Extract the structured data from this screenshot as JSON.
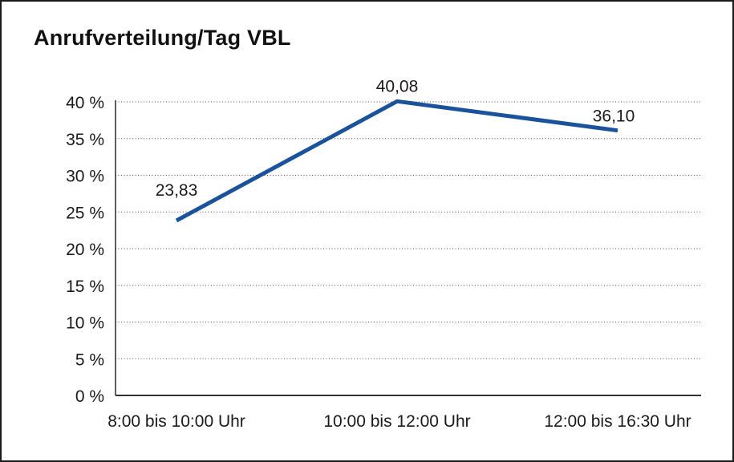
{
  "chart": {
    "title": "Anrufverteilung/Tag VBL"
  },
  "chart_data": {
    "type": "line",
    "title": "Anrufverteilung/Tag VBL",
    "categories": [
      "8:00 bis 10:00 Uhr",
      "10:00 bis 12:00 Uhr",
      "12:00 bis 16:30 Uhr"
    ],
    "values": [
      23.83,
      40.08,
      36.1
    ],
    "value_labels": [
      "23,83",
      "40,08",
      "36,10"
    ],
    "series_name": "Anrufverteilung",
    "xlabel": "",
    "ylabel": "",
    "ylim": [
      0,
      40
    ],
    "ytick_step": 5,
    "ytick_labels": [
      "0 %",
      "5 %",
      "10 %",
      "15 %",
      "20 %",
      "25 %",
      "30 %",
      "35 %",
      "40 %"
    ],
    "grid": "horizontal-dotted",
    "legend": "none",
    "line_color": "#1A529B",
    "text_color": "#1a1a1a",
    "background_color": "#ffffff"
  }
}
